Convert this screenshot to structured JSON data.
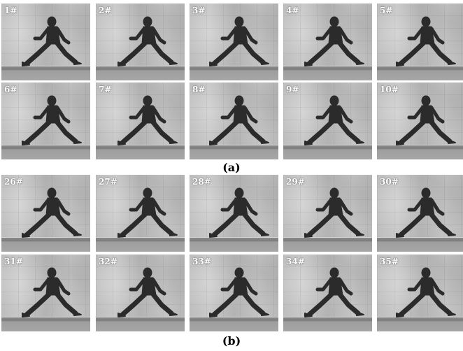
{
  "panels": [
    {
      "caption": "(a)",
      "frames": [
        {
          "label": "1#"
        },
        {
          "label": "2#"
        },
        {
          "label": "3#"
        },
        {
          "label": "4#"
        },
        {
          "label": "5#"
        },
        {
          "label": "6#"
        },
        {
          "label": "7#"
        },
        {
          "label": "8#"
        },
        {
          "label": "9#"
        },
        {
          "label": "10#"
        }
      ]
    },
    {
      "caption": "(b)",
      "frames": [
        {
          "label": "26#"
        },
        {
          "label": "27#"
        },
        {
          "label": "28#"
        },
        {
          "label": "29#"
        },
        {
          "label": "30#"
        },
        {
          "label": "31#"
        },
        {
          "label": "32#"
        },
        {
          "label": "33#"
        },
        {
          "label": "34#"
        },
        {
          "label": "35#"
        }
      ]
    }
  ]
}
